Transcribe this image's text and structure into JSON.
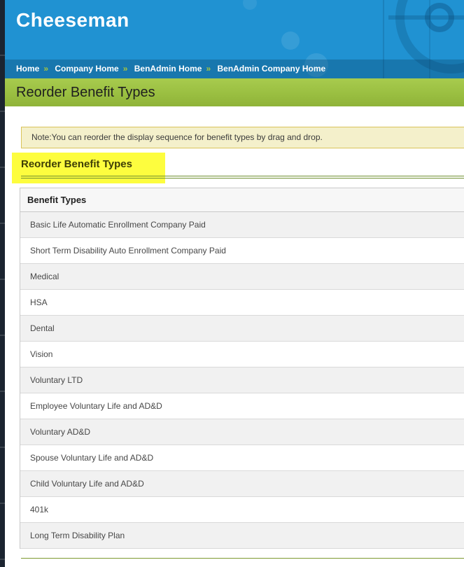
{
  "brand": {
    "logo": "Cheeseman"
  },
  "breadcrumb": {
    "separator": "»",
    "items": [
      "Home",
      "Company Home",
      "BenAdmin Home",
      "BenAdmin Company Home"
    ]
  },
  "page": {
    "title": "Reorder Benefit Types"
  },
  "note": {
    "text": "Note:You can reorder the display sequence for benefit types by drag and drop."
  },
  "section": {
    "heading": "Reorder Benefit Types"
  },
  "table": {
    "header": "Benefit Types",
    "rows": [
      "Basic Life Automatic Enrollment Company Paid",
      "Short Term Disability Auto Enrollment Company Paid",
      "Medical",
      "HSA",
      "Dental",
      "Vision",
      "Voluntary LTD",
      "Employee Voluntary Life and AD&D",
      "Voluntary AD&D",
      "Spouse Voluntary Life and AD&D",
      "Child Voluntary Life and AD&D",
      "401k",
      "Long Term Disability Plan"
    ]
  },
  "colors": {
    "header_blue": "#2092d2",
    "breadcrumb_separator_green": "#a5c43e",
    "title_band_green": "#9abf41",
    "note_background": "#f4f0cb",
    "note_border": "#d9c35a",
    "highlight_yellow": "#fdfd3e",
    "divider_olive": "#6f8f30",
    "row_alt_gray": "#f1f1f1",
    "edge_strip_navy": "#1b2430"
  }
}
